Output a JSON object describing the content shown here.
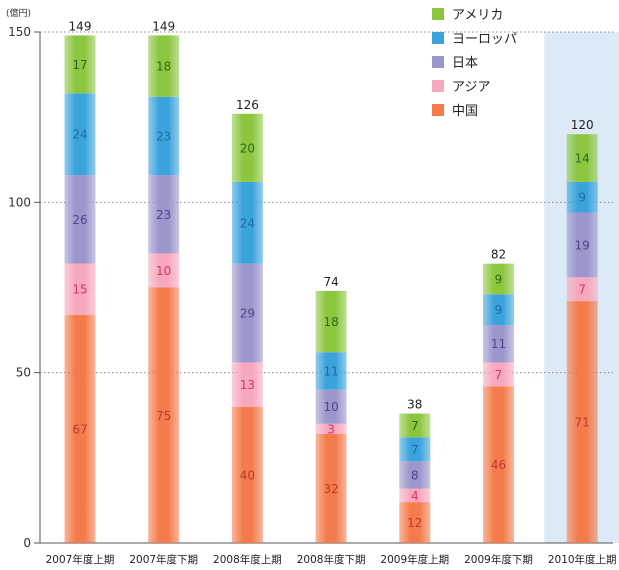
{
  "chart_data": {
    "type": "bar",
    "stacked": true,
    "unit": "(億円)",
    "ylim": [
      0,
      150
    ],
    "yticks": [
      0,
      50,
      100,
      150
    ],
    "grid": true,
    "legend_position": "top-right",
    "highlighted_category": "2010年度上期",
    "categories": [
      "2007年度上期",
      "2007年度下期",
      "2008年度上期",
      "2008年度下期",
      "2009年度上期",
      "2009年度下期",
      "2010年度上期"
    ],
    "totals": [
      149,
      149,
      126,
      74,
      38,
      82,
      120
    ],
    "series": [
      {
        "name": "中国",
        "color": "#f47c4c",
        "label_color": "#c0392b",
        "values": [
          67,
          75,
          40,
          32,
          12,
          46,
          71
        ]
      },
      {
        "name": "アジア",
        "color": "#f7a8bd",
        "label_color": "#d6336c",
        "values": [
          15,
          10,
          13,
          3,
          4,
          7,
          7
        ]
      },
      {
        "name": "日本",
        "color": "#9b96cc",
        "label_color": "#4a4a8c",
        "values": [
          26,
          23,
          29,
          10,
          8,
          11,
          19
        ]
      },
      {
        "name": "ヨーロッパ",
        "color": "#3aa3dc",
        "label_color": "#1f6aa8",
        "values": [
          24,
          23,
          24,
          11,
          7,
          9,
          9
        ]
      },
      {
        "name": "アメリカ",
        "color": "#8cc63f",
        "label_color": "#2e6b1a",
        "values": [
          17,
          18,
          20,
          18,
          7,
          9,
          14
        ]
      }
    ],
    "legend_order": [
      "アメリカ",
      "ヨーロッパ",
      "日本",
      "アジア",
      "中国"
    ]
  }
}
